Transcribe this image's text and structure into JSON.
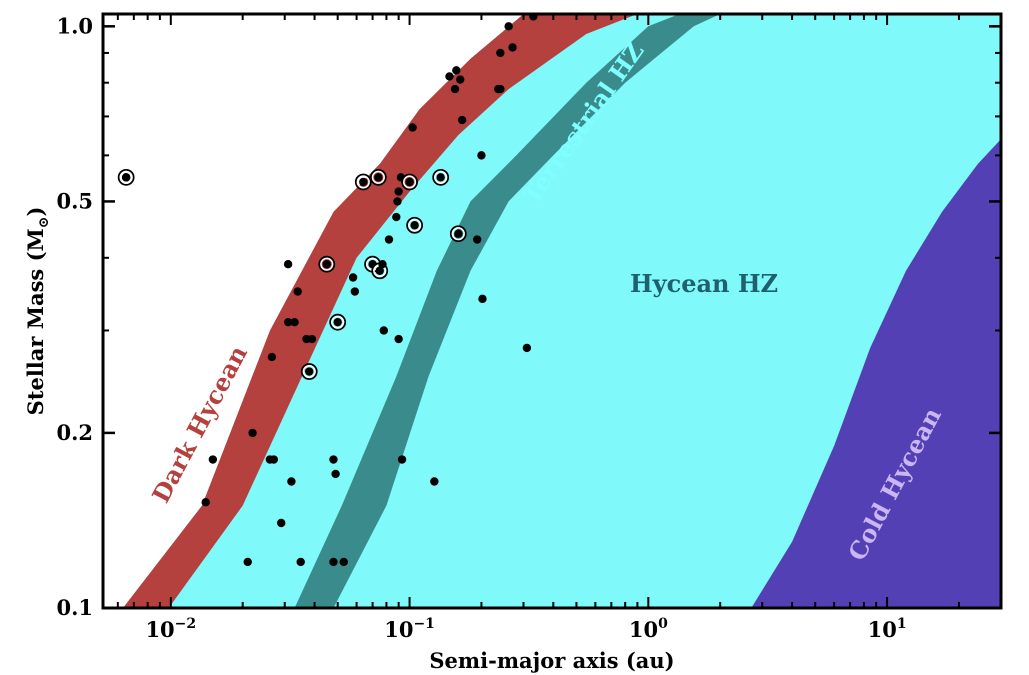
{
  "chart_data": {
    "type": "scatter",
    "xlabel": "Semi-major axis (au)",
    "ylabel": "Stellar Mass (M",
    "ylabel_sub": "⊙",
    "ylabel_close": ")",
    "x_scale": "log",
    "y_scale": "log",
    "xlim": [
      0.0052,
      30
    ],
    "ylim": [
      0.1,
      1.05
    ],
    "x_ticks": [
      {
        "value": 0.01,
        "base": "10",
        "exp": "−2"
      },
      {
        "value": 0.1,
        "base": "10",
        "exp": "−1"
      },
      {
        "value": 1,
        "base": "10",
        "exp": "0"
      },
      {
        "value": 10,
        "base": "10",
        "exp": "1"
      }
    ],
    "y_ticks": [
      {
        "value": 0.1,
        "label": "0.1"
      },
      {
        "value": 0.2,
        "label": "0.2"
      },
      {
        "value": 0.5,
        "label": "0.5"
      },
      {
        "value": 1.0,
        "label": "1.0"
      }
    ],
    "grid": false,
    "regions": [
      {
        "name": "Dark Hycean",
        "color": "#b5413f",
        "label_color": "#b5413f",
        "inner": [
          [
            0.0063,
            0.1
          ],
          [
            0.0135,
            0.15
          ],
          [
            0.026,
            0.3
          ],
          [
            0.048,
            0.48
          ],
          [
            0.075,
            0.58
          ],
          [
            0.11,
            0.72
          ],
          [
            0.18,
            0.88
          ],
          [
            0.3,
            1.05
          ]
        ],
        "outer": [
          [
            0.0098,
            0.1
          ],
          [
            0.02,
            0.15
          ],
          [
            0.037,
            0.26
          ],
          [
            0.06,
            0.4
          ],
          [
            0.1,
            0.52
          ],
          [
            0.16,
            0.65
          ],
          [
            0.26,
            0.78
          ],
          [
            0.55,
            0.97
          ],
          [
            0.9,
            1.05
          ]
        ]
      },
      {
        "name": "Terrestrial HZ",
        "color": "#3a8c8c",
        "label_color": "#7fffff",
        "inner": [
          [
            0.033,
            0.1
          ],
          [
            0.052,
            0.15
          ],
          [
            0.088,
            0.25
          ],
          [
            0.13,
            0.38
          ],
          [
            0.18,
            0.5
          ],
          [
            0.28,
            0.6
          ],
          [
            0.55,
            0.8
          ],
          [
            1.0,
            1.0
          ],
          [
            1.35,
            1.05
          ]
        ],
        "outer": [
          [
            0.048,
            0.1
          ],
          [
            0.08,
            0.15
          ],
          [
            0.12,
            0.25
          ],
          [
            0.18,
            0.38
          ],
          [
            0.26,
            0.5
          ],
          [
            0.4,
            0.6
          ],
          [
            0.8,
            0.8
          ],
          [
            1.55,
            1.0
          ],
          [
            2.0,
            1.05
          ]
        ]
      },
      {
        "name": "Hycean HZ",
        "color": "#7ff9f9",
        "label_color": "#1f5f6e"
      },
      {
        "name": "Cold Hycean",
        "color": "#5440b5",
        "label_color": "#c9b6f2",
        "boundary": [
          [
            2.7,
            0.1
          ],
          [
            4.0,
            0.13
          ],
          [
            6.0,
            0.19
          ],
          [
            8.5,
            0.28
          ],
          [
            12.0,
            0.38
          ],
          [
            17.0,
            0.48
          ],
          [
            24.0,
            0.58
          ],
          [
            30.0,
            0.64
          ]
        ]
      }
    ],
    "points": [
      {
        "x": 0.0065,
        "y": 0.55,
        "circled": true
      },
      {
        "x": 0.0065,
        "y": 0.55,
        "circled": false
      },
      {
        "x": 0.014,
        "y": 0.152,
        "circled": false
      },
      {
        "x": 0.015,
        "y": 0.18,
        "circled": false
      },
      {
        "x": 0.021,
        "y": 0.12,
        "circled": false
      },
      {
        "x": 0.022,
        "y": 0.2,
        "circled": false
      },
      {
        "x": 0.026,
        "y": 0.18,
        "circled": false
      },
      {
        "x": 0.027,
        "y": 0.18,
        "circled": false
      },
      {
        "x": 0.0265,
        "y": 0.27,
        "circled": false
      },
      {
        "x": 0.029,
        "y": 0.14,
        "circled": false
      },
      {
        "x": 0.031,
        "y": 0.31,
        "circled": false
      },
      {
        "x": 0.031,
        "y": 0.39,
        "circled": false
      },
      {
        "x": 0.032,
        "y": 0.165,
        "circled": false
      },
      {
        "x": 0.033,
        "y": 0.31,
        "circled": false
      },
      {
        "x": 0.034,
        "y": 0.35,
        "circled": false
      },
      {
        "x": 0.035,
        "y": 0.12,
        "circled": false
      },
      {
        "x": 0.037,
        "y": 0.29,
        "circled": false
      },
      {
        "x": 0.038,
        "y": 0.255,
        "circled": true
      },
      {
        "x": 0.039,
        "y": 0.29,
        "circled": false
      },
      {
        "x": 0.045,
        "y": 0.39,
        "circled": true
      },
      {
        "x": 0.048,
        "y": 0.18,
        "circled": false
      },
      {
        "x": 0.048,
        "y": 0.12,
        "circled": false
      },
      {
        "x": 0.049,
        "y": 0.17,
        "circled": false
      },
      {
        "x": 0.05,
        "y": 0.31,
        "circled": true
      },
      {
        "x": 0.053,
        "y": 0.12,
        "circled": false
      },
      {
        "x": 0.058,
        "y": 0.37,
        "circled": false
      },
      {
        "x": 0.059,
        "y": 0.35,
        "circled": false
      },
      {
        "x": 0.064,
        "y": 0.54,
        "circled": true
      },
      {
        "x": 0.07,
        "y": 0.39,
        "circled": true
      },
      {
        "x": 0.074,
        "y": 0.55,
        "circled": true
      },
      {
        "x": 0.075,
        "y": 0.38,
        "circled": true
      },
      {
        "x": 0.077,
        "y": 0.39,
        "circled": false
      },
      {
        "x": 0.078,
        "y": 0.3,
        "circled": false
      },
      {
        "x": 0.082,
        "y": 0.43,
        "circled": false
      },
      {
        "x": 0.088,
        "y": 0.47,
        "circled": false
      },
      {
        "x": 0.089,
        "y": 0.5,
        "circled": false
      },
      {
        "x": 0.09,
        "y": 0.52,
        "circled": false
      },
      {
        "x": 0.09,
        "y": 0.29,
        "circled": false
      },
      {
        "x": 0.092,
        "y": 0.55,
        "circled": false
      },
      {
        "x": 0.093,
        "y": 0.18,
        "circled": false
      },
      {
        "x": 0.1,
        "y": 0.54,
        "circled": true
      },
      {
        "x": 0.103,
        "y": 0.67,
        "circled": false
      },
      {
        "x": 0.105,
        "y": 0.455,
        "circled": true
      },
      {
        "x": 0.127,
        "y": 0.165,
        "circled": false
      },
      {
        "x": 0.135,
        "y": 0.55,
        "circled": true
      },
      {
        "x": 0.147,
        "y": 0.82,
        "circled": false
      },
      {
        "x": 0.155,
        "y": 0.78,
        "circled": false
      },
      {
        "x": 0.157,
        "y": 0.84,
        "circled": false
      },
      {
        "x": 0.16,
        "y": 0.44,
        "circled": true
      },
      {
        "x": 0.163,
        "y": 0.81,
        "circled": false
      },
      {
        "x": 0.166,
        "y": 0.69,
        "circled": false
      },
      {
        "x": 0.192,
        "y": 0.43,
        "circled": false
      },
      {
        "x": 0.2,
        "y": 0.6,
        "circled": false
      },
      {
        "x": 0.202,
        "y": 0.34,
        "circled": false
      },
      {
        "x": 0.235,
        "y": 0.78,
        "circled": false
      },
      {
        "x": 0.24,
        "y": 0.78,
        "circled": false
      },
      {
        "x": 0.24,
        "y": 0.9,
        "circled": false
      },
      {
        "x": 0.26,
        "y": 1.0,
        "circled": false
      },
      {
        "x": 0.27,
        "y": 0.92,
        "circled": false
      },
      {
        "x": 0.31,
        "y": 0.28,
        "circled": false
      },
      {
        "x": 0.33,
        "y": 1.04,
        "circled": false
      }
    ]
  }
}
